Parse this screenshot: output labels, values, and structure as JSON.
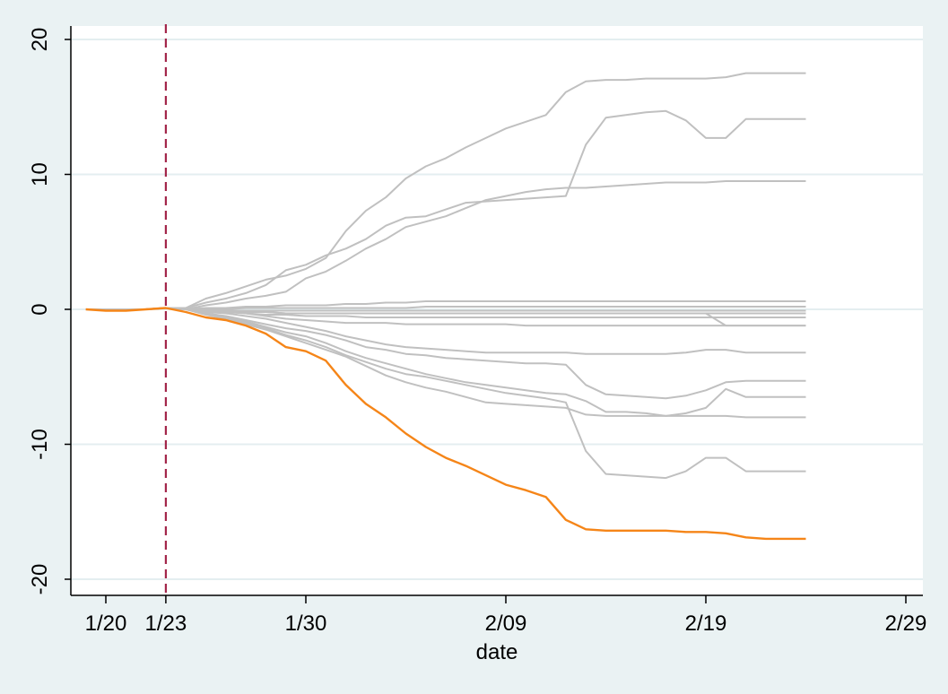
{
  "chart_data": {
    "type": "line",
    "title": "",
    "xlabel": "date",
    "ylabel": "",
    "x_ticks": [
      "1/20",
      "1/23",
      "1/30",
      "2/09",
      "2/19",
      "2/29"
    ],
    "y_ticks": [
      "-20",
      "-10",
      "0",
      "10",
      "20"
    ],
    "xlim": [
      "2020-01-18",
      "2020-03-01"
    ],
    "ylim": [
      -21,
      21
    ],
    "grid": "horizontal",
    "legend": "none",
    "reference_line": {
      "x": "2020-01-23",
      "style": "dashed",
      "color": "#a3264a"
    },
    "colors": {
      "highlight": "#f58518",
      "series": "#c0c0c0",
      "background": "#eaf2f3",
      "plot_background": "#ffffff",
      "grid": "#e4eef0"
    },
    "x": [
      "2020-01-19",
      "2020-01-20",
      "2020-01-21",
      "2020-01-22",
      "2020-01-23",
      "2020-01-24",
      "2020-01-25",
      "2020-01-26",
      "2020-01-27",
      "2020-01-28",
      "2020-01-29",
      "2020-01-30",
      "2020-01-31",
      "2020-02-01",
      "2020-02-02",
      "2020-02-03",
      "2020-02-04",
      "2020-02-05",
      "2020-02-06",
      "2020-02-07",
      "2020-02-08",
      "2020-02-09",
      "2020-02-10",
      "2020-02-11",
      "2020-02-12",
      "2020-02-13",
      "2020-02-14",
      "2020-02-15",
      "2020-02-16",
      "2020-02-17",
      "2020-02-18",
      "2020-02-19",
      "2020-02-20",
      "2020-02-21",
      "2020-02-22",
      "2020-02-23",
      "2020-02-24"
    ],
    "series": [
      {
        "highlight": false,
        "values": [
          0,
          0,
          0,
          0,
          0.1,
          0.1,
          0.8,
          1.2,
          1.7,
          2.2,
          2.5,
          3.0,
          3.8,
          5.8,
          7.3,
          8.3,
          9.7,
          10.6,
          11.2,
          12.0,
          12.7,
          13.4,
          13.9,
          14.4,
          16.1,
          16.9,
          17.0,
          17.0,
          17.1,
          17.1,
          17.1,
          17.1,
          17.2,
          17.5,
          17.5,
          17.5,
          17.5
        ]
      },
      {
        "highlight": false,
        "values": [
          0,
          0,
          0,
          0,
          0.1,
          0.1,
          0.5,
          0.8,
          1.2,
          1.8,
          2.9,
          3.3,
          4.0,
          4.5,
          5.2,
          6.2,
          6.8,
          6.9,
          7.4,
          7.9,
          8.0,
          8.1,
          8.2,
          8.3,
          8.4,
          12.2,
          14.2,
          14.4,
          14.6,
          14.7,
          14.0,
          12.7,
          12.7,
          14.1,
          14.1,
          14.1,
          14.1
        ]
      },
      {
        "highlight": false,
        "values": [
          0,
          0,
          0,
          0,
          0.1,
          0.0,
          0.3,
          0.5,
          0.8,
          1.0,
          1.3,
          2.3,
          2.8,
          3.6,
          4.5,
          5.2,
          6.1,
          6.5,
          6.9,
          7.5,
          8.1,
          8.4,
          8.7,
          8.9,
          9.0,
          9.0,
          9.1,
          9.2,
          9.3,
          9.4,
          9.4,
          9.4,
          9.5,
          9.5,
          9.5,
          9.5,
          9.5
        ]
      },
      {
        "highlight": false,
        "values": [
          0,
          0,
          0,
          0,
          0.1,
          0.0,
          0.1,
          0.1,
          0.2,
          0.2,
          0.3,
          0.3,
          0.3,
          0.4,
          0.4,
          0.5,
          0.5,
          0.6,
          0.6,
          0.6,
          0.6,
          0.6,
          0.6,
          0.6,
          0.6,
          0.6,
          0.6,
          0.6,
          0.6,
          0.6,
          0.6,
          0.6,
          0.6,
          0.6,
          0.6,
          0.6,
          0.6
        ]
      },
      {
        "highlight": false,
        "values": [
          0,
          0,
          0,
          0,
          0.1,
          0.0,
          0.0,
          0.0,
          0.1,
          0.1,
          0.1,
          0.1,
          0.1,
          0.1,
          0.1,
          0.1,
          0.1,
          0.2,
          0.2,
          0.2,
          0.2,
          0.2,
          0.2,
          0.2,
          0.2,
          0.2,
          0.2,
          0.2,
          0.2,
          0.2,
          0.2,
          0.2,
          0.2,
          0.2,
          0.2,
          0.2,
          0.2
        ]
      },
      {
        "highlight": false,
        "values": [
          0,
          0,
          0,
          0,
          0.1,
          0.0,
          -0.1,
          -0.1,
          -0.1,
          -0.1,
          -0.1,
          -0.1,
          -0.1,
          -0.1,
          -0.1,
          -0.1,
          -0.1,
          -0.1,
          -0.1,
          -0.1,
          -0.1,
          -0.1,
          -0.1,
          -0.1,
          -0.1,
          -0.1,
          -0.1,
          -0.1,
          -0.1,
          -0.1,
          -0.1,
          -0.1,
          -0.1,
          -0.1,
          -0.1,
          -0.1,
          -0.1
        ]
      },
      {
        "highlight": false,
        "values": [
          0,
          0,
          0,
          0,
          0.1,
          0.0,
          -0.1,
          -0.1,
          -0.2,
          -0.2,
          -0.3,
          -0.3,
          -0.3,
          -0.3,
          -0.3,
          -0.3,
          -0.3,
          -0.3,
          -0.3,
          -0.3,
          -0.3,
          -0.3,
          -0.3,
          -0.3,
          -0.3,
          -0.3,
          -0.3,
          -0.3,
          -0.3,
          -0.3,
          -0.3,
          -0.3,
          -0.3,
          -0.3,
          -0.3,
          -0.3,
          -0.3
        ]
      },
      {
        "highlight": false,
        "values": [
          0,
          0,
          0,
          0,
          0.1,
          0.0,
          -0.1,
          -0.2,
          -0.3,
          -0.4,
          -0.4,
          -0.5,
          -0.5,
          -0.5,
          -0.6,
          -0.6,
          -0.6,
          -0.6,
          -0.6,
          -0.6,
          -0.6,
          -0.6,
          -0.6,
          -0.6,
          -0.6,
          -0.6,
          -0.6,
          -0.6,
          -0.6,
          -0.6,
          -0.6,
          -0.6,
          -0.6,
          -0.6,
          -0.6,
          -0.6,
          -0.6
        ]
      },
      {
        "highlight": false,
        "values": [
          0,
          0,
          0,
          0,
          0.1,
          0.0,
          -0.1,
          -0.2,
          -0.3,
          -0.5,
          -0.7,
          -0.8,
          -0.9,
          -1.0,
          -1.0,
          -1.0,
          -1.1,
          -1.1,
          -1.1,
          -1.1,
          -1.1,
          -1.1,
          -1.2,
          -1.2,
          -1.2,
          -1.2,
          -1.2,
          -1.2,
          -1.2,
          -1.2,
          -1.2,
          -1.2,
          -1.2,
          -1.2,
          -1.2,
          -1.2,
          -1.2
        ]
      },
      {
        "highlight": false,
        "values": [
          0,
          0,
          0,
          0,
          0.1,
          0.0,
          -0.1,
          -0.1,
          -0.2,
          -0.2,
          -0.3,
          -0.3,
          -0.3,
          -0.3,
          -0.3,
          -0.3,
          -0.3,
          -0.3,
          -0.3,
          -0.3,
          -0.3,
          -0.3,
          -0.3,
          -0.3,
          -0.3,
          -0.3,
          -0.3,
          -0.3,
          -0.3,
          -0.3,
          -0.3,
          -0.3,
          -1.2,
          -1.2,
          -1.2,
          -1.2,
          -1.2
        ]
      },
      {
        "highlight": false,
        "values": [
          0,
          0,
          0,
          0,
          0.1,
          0.0,
          -0.2,
          -0.3,
          -0.5,
          -0.7,
          -1.0,
          -1.3,
          -1.6,
          -2.0,
          -2.3,
          -2.6,
          -2.8,
          -2.9,
          -3.0,
          -3.1,
          -3.2,
          -3.2,
          -3.2,
          -3.2,
          -3.2,
          -3.3,
          -3.3,
          -3.3,
          -3.3,
          -3.3,
          -3.2,
          -3.0,
          -3.0,
          -3.2,
          -3.2,
          -3.2,
          -3.2
        ]
      },
      {
        "highlight": false,
        "values": [
          0,
          0,
          0,
          0,
          0.1,
          0.0,
          -0.3,
          -0.5,
          -0.8,
          -1.1,
          -1.4,
          -1.6,
          -1.9,
          -2.3,
          -2.8,
          -3.0,
          -3.3,
          -3.4,
          -3.6,
          -3.7,
          -3.8,
          -3.9,
          -4.0,
          -4.0,
          -4.1,
          -5.6,
          -6.3,
          -6.4,
          -6.5,
          -6.6,
          -6.4,
          -6.0,
          -5.4,
          -5.3,
          -5.3,
          -5.3,
          -5.3
        ]
      },
      {
        "highlight": false,
        "values": [
          0,
          0,
          0,
          0,
          0.1,
          0.0,
          -0.3,
          -0.6,
          -0.9,
          -1.3,
          -1.7,
          -2.0,
          -2.5,
          -3.1,
          -3.6,
          -4.0,
          -4.4,
          -4.8,
          -5.1,
          -5.4,
          -5.6,
          -5.8,
          -6.0,
          -6.2,
          -6.3,
          -6.8,
          -7.6,
          -7.6,
          -7.7,
          -7.9,
          -7.7,
          -7.3,
          -5.9,
          -6.5,
          -6.5,
          -6.5,
          -6.5
        ]
      },
      {
        "highlight": false,
        "values": [
          0,
          0,
          0,
          0,
          0.1,
          0.0,
          -0.4,
          -0.7,
          -1.1,
          -1.5,
          -2.0,
          -2.5,
          -3.0,
          -3.5,
          -4.2,
          -4.9,
          -5.4,
          -5.8,
          -6.1,
          -6.5,
          -6.9,
          -7.0,
          -7.1,
          -7.2,
          -7.3,
          -7.8,
          -7.9,
          -7.9,
          -7.9,
          -7.9,
          -7.9,
          -7.9,
          -7.9,
          -8.0,
          -8.0,
          -8.0,
          -8.0
        ]
      },
      {
        "highlight": false,
        "values": [
          0,
          0,
          0,
          0,
          0.1,
          0.0,
          -0.3,
          -0.6,
          -1.0,
          -1.4,
          -1.9,
          -2.3,
          -2.8,
          -3.4,
          -3.9,
          -4.4,
          -4.8,
          -5.0,
          -5.3,
          -5.6,
          -5.9,
          -6.2,
          -6.4,
          -6.6,
          -6.9,
          -10.5,
          -12.2,
          -12.3,
          -12.4,
          -12.5,
          -12.0,
          -11.0,
          -11.0,
          -12.0,
          -12.0,
          -12.0,
          -12.0
        ]
      },
      {
        "highlight": true,
        "values": [
          0,
          -0.1,
          -0.1,
          0,
          0.1,
          -0.2,
          -0.6,
          -0.8,
          -1.2,
          -1.8,
          -2.8,
          -3.1,
          -3.8,
          -5.6,
          -7.0,
          -8.0,
          -9.2,
          -10.2,
          -11.0,
          -11.6,
          -12.3,
          -13.0,
          -13.4,
          -13.9,
          -15.6,
          -16.3,
          -16.4,
          -16.4,
          -16.4,
          -16.4,
          -16.5,
          -16.5,
          -16.6,
          -16.9,
          -17.0,
          -17.0,
          -17.0
        ]
      }
    ]
  }
}
